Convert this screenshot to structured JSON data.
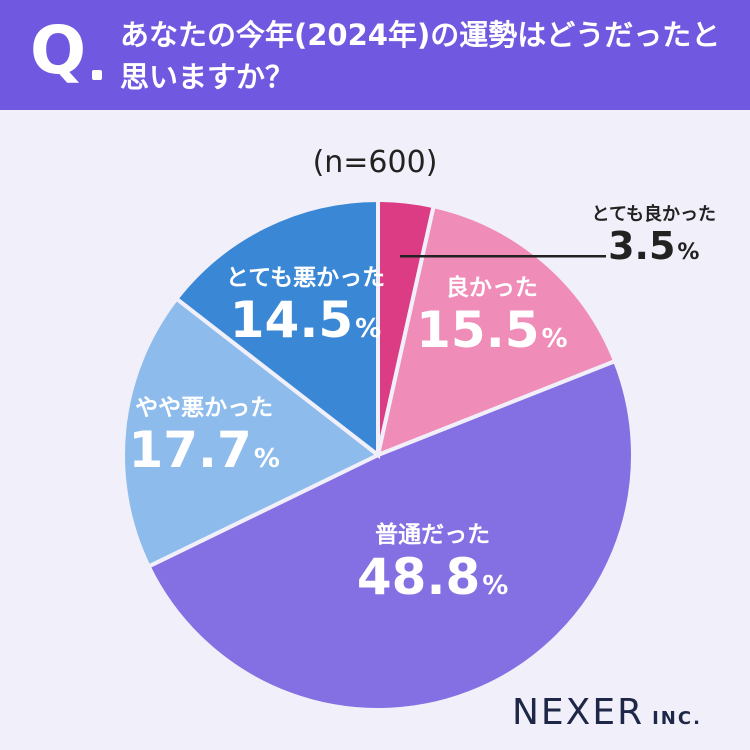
{
  "header": {
    "q_mark": "Q",
    "question": "あなたの今年(2024年)の運勢はどうだったと思いますか？"
  },
  "sample_size": "(n=600)",
  "brand": {
    "name": "NEXER",
    "suffix": "INC."
  },
  "chart_data": {
    "type": "pie",
    "title": "あなたの今年(2024年)の運勢はどうだったと思いますか？",
    "subtitle": "(n=600)",
    "unit": "%",
    "slices": [
      {
        "label": "とても良かった",
        "value": 3.5,
        "color": "#dc3c84"
      },
      {
        "label": "良かった",
        "value": 15.5,
        "color": "#ef8cb8"
      },
      {
        "label": "普通だった",
        "value": 48.8,
        "color": "#8470e2"
      },
      {
        "label": "やや悪かった",
        "value": 17.7,
        "color": "#8dbcec"
      },
      {
        "label": "とても悪かった",
        "value": 14.5,
        "color": "#3a87d6"
      }
    ],
    "value_labels": [
      "3.5",
      "15.5",
      "48.8",
      "17.7",
      "14.5"
    ],
    "start": "12 o'clock, clockwise"
  }
}
